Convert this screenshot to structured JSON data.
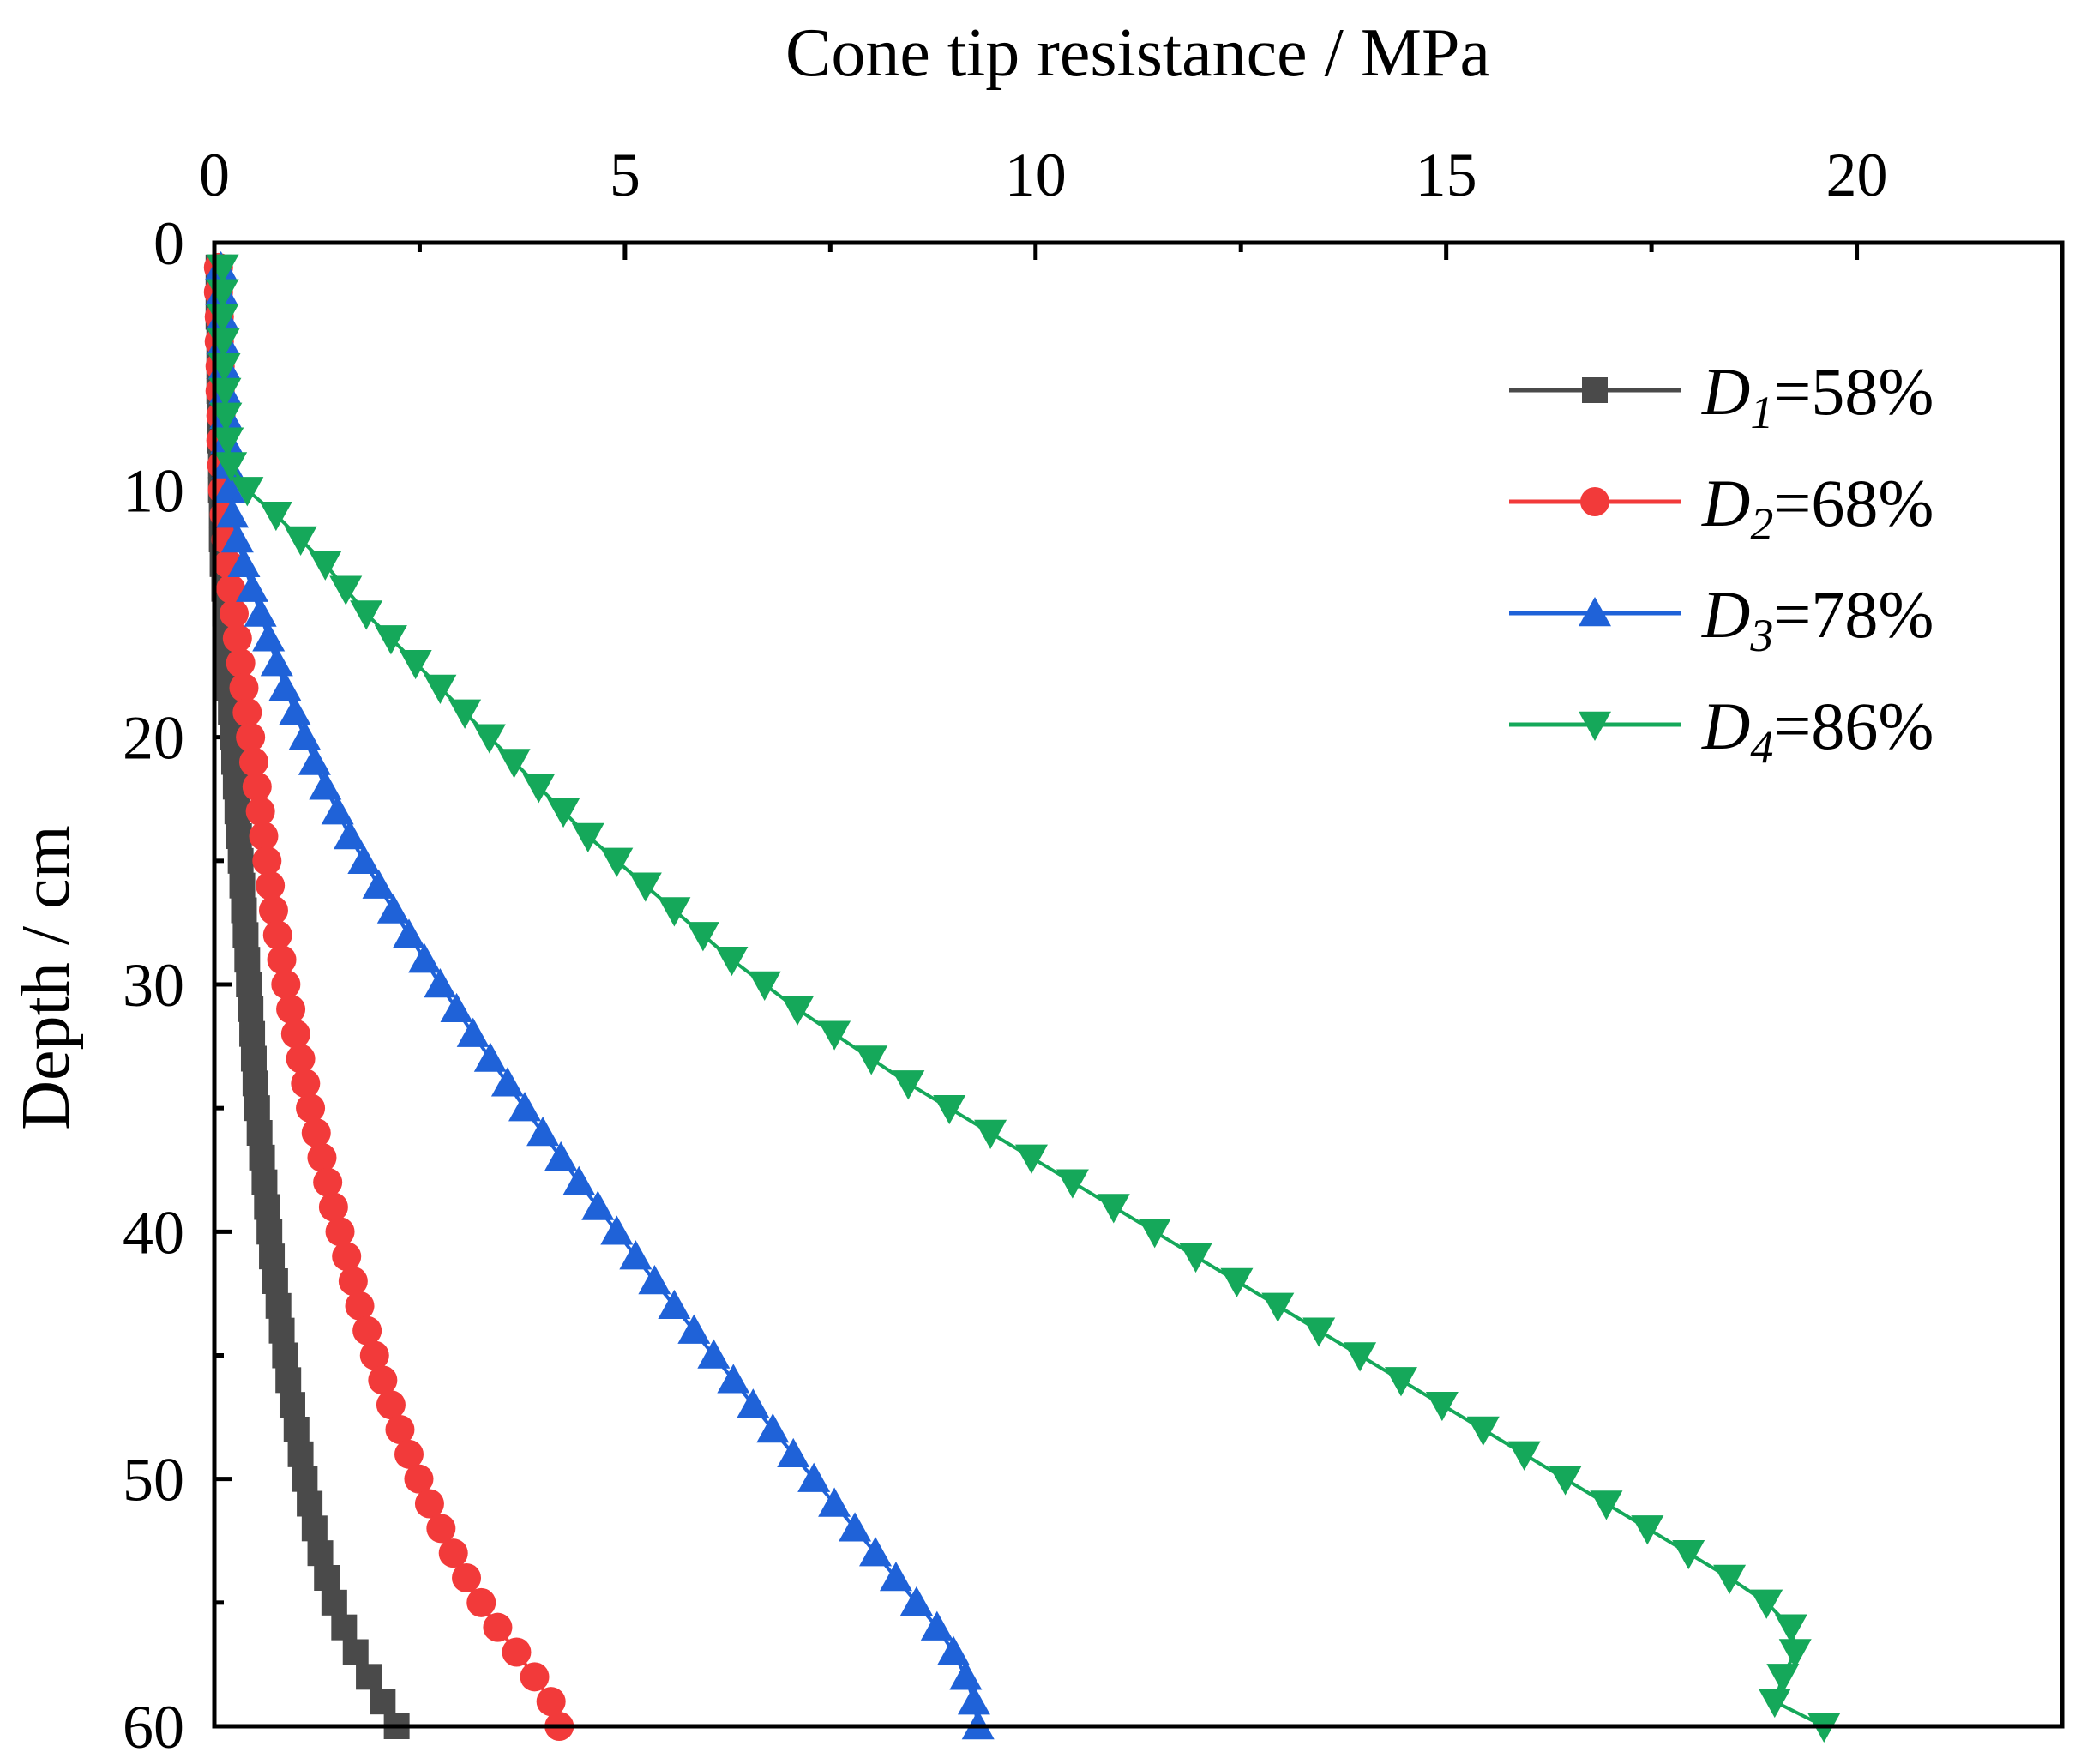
{
  "chart_data": {
    "type": "line",
    "title": "",
    "xlabel": "Cone tip resistance / MPa",
    "ylabel": "Depth / cm",
    "xlim": [
      0,
      22.5
    ],
    "ylim": [
      0,
      60
    ],
    "y_inverted": true,
    "x_axis_position": "top",
    "x_ticks": [
      "0",
      "5",
      "10",
      "15",
      "20"
    ],
    "y_ticks": [
      "0",
      "10",
      "20",
      "30",
      "40",
      "50",
      "60"
    ],
    "grid": false,
    "legend_position": "top-right",
    "depth": [
      1,
      2,
      3,
      4,
      5,
      6,
      7,
      8,
      9,
      10,
      11,
      12,
      13,
      14,
      15,
      16,
      17,
      18,
      19,
      20,
      21,
      22,
      23,
      24,
      25,
      26,
      27,
      28,
      29,
      30,
      31,
      32,
      33,
      34,
      35,
      36,
      37,
      38,
      39,
      40,
      41,
      42,
      43,
      44,
      45,
      46,
      47,
      48,
      49,
      50,
      51,
      52,
      53,
      54,
      55,
      56,
      57,
      58,
      59,
      60
    ],
    "series": [
      {
        "name": "D1=58%",
        "label_letter": "D",
        "label_sub": "1",
        "label_rest": "=58%",
        "color": "#4a4a4a",
        "marker": "square",
        "values": [
          0.05,
          0.05,
          0.05,
          0.06,
          0.06,
          0.06,
          0.07,
          0.07,
          0.08,
          0.08,
          0.09,
          0.09,
          0.1,
          0.12,
          0.13,
          0.15,
          0.17,
          0.18,
          0.2,
          0.22,
          0.24,
          0.26,
          0.28,
          0.3,
          0.32,
          0.34,
          0.36,
          0.38,
          0.4,
          0.42,
          0.44,
          0.46,
          0.48,
          0.5,
          0.52,
          0.55,
          0.58,
          0.61,
          0.64,
          0.67,
          0.7,
          0.74,
          0.78,
          0.82,
          0.86,
          0.9,
          0.95,
          1.0,
          1.05,
          1.1,
          1.16,
          1.22,
          1.29,
          1.37,
          1.46,
          1.58,
          1.72,
          1.88,
          2.05,
          2.22
        ]
      },
      {
        "name": "D2=68%",
        "label_letter": "D",
        "label_sub": "2",
        "label_rest": "=68%",
        "color": "#f23a3a",
        "marker": "circle",
        "values": [
          0.05,
          0.05,
          0.06,
          0.06,
          0.07,
          0.07,
          0.08,
          0.08,
          0.09,
          0.1,
          0.12,
          0.14,
          0.17,
          0.2,
          0.24,
          0.28,
          0.32,
          0.36,
          0.4,
          0.44,
          0.48,
          0.52,
          0.56,
          0.6,
          0.64,
          0.68,
          0.72,
          0.77,
          0.82,
          0.87,
          0.93,
          0.99,
          1.05,
          1.11,
          1.17,
          1.24,
          1.31,
          1.38,
          1.45,
          1.53,
          1.61,
          1.69,
          1.77,
          1.86,
          1.95,
          2.05,
          2.15,
          2.26,
          2.37,
          2.49,
          2.62,
          2.76,
          2.91,
          3.07,
          3.25,
          3.45,
          3.68,
          3.9,
          4.1,
          4.2
        ]
      },
      {
        "name": "D3=78%",
        "label_letter": "D",
        "label_sub": "3",
        "label_rest": "=78%",
        "color": "#1f62d8",
        "marker": "triangle-up",
        "values": [
          0.08,
          0.09,
          0.1,
          0.11,
          0.12,
          0.13,
          0.14,
          0.15,
          0.16,
          0.18,
          0.22,
          0.28,
          0.36,
          0.46,
          0.56,
          0.66,
          0.76,
          0.86,
          0.98,
          1.1,
          1.22,
          1.35,
          1.5,
          1.65,
          1.82,
          2.0,
          2.18,
          2.37,
          2.56,
          2.75,
          2.95,
          3.15,
          3.36,
          3.57,
          3.78,
          4.0,
          4.22,
          4.44,
          4.67,
          4.9,
          5.13,
          5.36,
          5.6,
          5.84,
          6.08,
          6.32,
          6.56,
          6.8,
          7.05,
          7.3,
          7.55,
          7.8,
          8.05,
          8.3,
          8.55,
          8.8,
          9.0,
          9.15,
          9.25,
          9.3
        ]
      },
      {
        "name": "D4=86%",
        "label_letter": "D",
        "label_sub": "4",
        "label_rest": "=86%",
        "color": "#15a85a",
        "marker": "triangle-down",
        "values": [
          0.1,
          0.1,
          0.1,
          0.11,
          0.12,
          0.13,
          0.14,
          0.16,
          0.2,
          0.4,
          0.75,
          1.05,
          1.35,
          1.6,
          1.85,
          2.15,
          2.45,
          2.75,
          3.05,
          3.35,
          3.65,
          3.95,
          4.25,
          4.55,
          4.9,
          5.25,
          5.6,
          5.95,
          6.3,
          6.7,
          7.1,
          7.55,
          8.0,
          8.45,
          8.95,
          9.45,
          9.95,
          10.45,
          10.95,
          11.45,
          11.95,
          12.45,
          12.95,
          13.45,
          13.95,
          14.45,
          14.95,
          15.45,
          15.95,
          16.45,
          16.95,
          17.45,
          17.95,
          18.45,
          18.9,
          19.2,
          19.25,
          19.1,
          19.0,
          19.6
        ]
      }
    ]
  }
}
